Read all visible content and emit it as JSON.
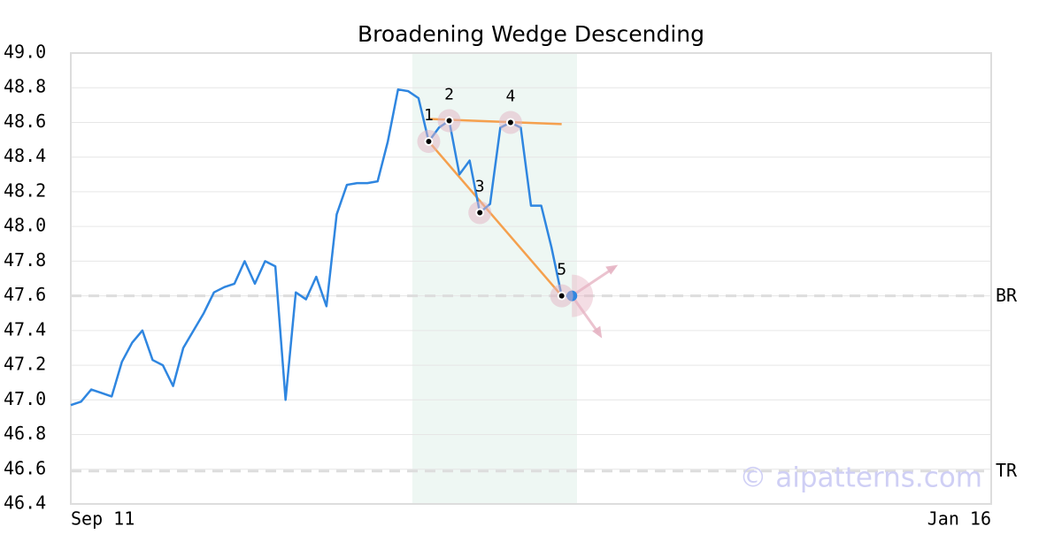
{
  "chart_data": {
    "type": "line",
    "title": "Broadening Wedge Descending",
    "categories": [
      "Sep 11",
      null,
      null,
      null,
      null,
      null,
      null,
      null,
      null,
      null,
      null,
      null,
      null,
      null,
      null,
      null,
      null,
      null,
      null,
      null,
      null,
      null,
      null,
      null,
      null,
      null,
      null,
      null,
      null,
      null,
      null,
      null,
      null,
      null,
      null,
      null,
      null,
      null,
      null,
      null,
      null,
      null,
      null,
      null,
      null,
      null,
      null,
      null,
      null,
      null,
      null,
      null,
      null,
      null,
      null,
      null,
      null,
      null,
      null,
      null,
      null,
      null,
      null,
      null,
      null,
      null,
      null,
      null,
      null,
      null,
      null,
      null,
      null,
      null,
      null,
      null,
      null,
      null,
      null,
      null,
      null,
      null,
      null,
      null,
      null,
      null,
      null,
      null,
      null,
      null,
      "Jan 16"
    ],
    "series": [
      {
        "color": "#2f86e0",
        "values": [
          46.97,
          46.99,
          47.06,
          47.04,
          47.02,
          47.22,
          47.33,
          47.4,
          47.23,
          47.2,
          47.08,
          47.3,
          47.4,
          47.5,
          47.62,
          47.65,
          47.67,
          47.8,
          47.67,
          47.8,
          47.77,
          47.0,
          47.62,
          47.58,
          47.71,
          47.54,
          48.07,
          48.24,
          48.25,
          48.25,
          48.26,
          48.49,
          48.79,
          48.78,
          48.74,
          48.49,
          48.57,
          48.61,
          48.3,
          48.38,
          48.08,
          48.13,
          48.57,
          48.6,
          48.57,
          48.12,
          48.12,
          47.88,
          47.6,
          47.6,
          null,
          null,
          null,
          null,
          null,
          null,
          null,
          null,
          null,
          null,
          null,
          null,
          null,
          null,
          null,
          null,
          null,
          null,
          null,
          null,
          null,
          null,
          null,
          null,
          null,
          null,
          null,
          null,
          null,
          null,
          null,
          null,
          null,
          null,
          null,
          null,
          null,
          null,
          null,
          null,
          null
        ]
      }
    ],
    "ylim": [
      46.4,
      49.0
    ],
    "yticks": [
      46.4,
      46.6,
      46.8,
      {
        "value": 47.0,
        "label": "47.0"
      },
      47.2,
      47.4,
      47.6,
      47.8,
      {
        "value": 48.0,
        "label": "48.0"
      },
      48.2,
      48.4,
      48.6,
      48.8,
      {
        "value": 49.0,
        "label": "49.0"
      }
    ],
    "grid": true,
    "highlight": {
      "color": "#eef7f3",
      "x": [
        33.4,
        49.5
      ]
    },
    "pattern_points": [
      {
        "label": "1",
        "x": 35,
        "y": 48.49
      },
      {
        "label": "2",
        "x": 37,
        "y": 48.61
      },
      {
        "label": "3",
        "x": 40,
        "y": 48.08
      },
      {
        "label": "4",
        "x": 43,
        "y": 48.6
      },
      {
        "label": "5",
        "x": 48,
        "y": 47.6
      }
    ],
    "trendlines": [
      {
        "color": "#f5a04d",
        "x": [
          35,
          48
        ],
        "y": [
          48.62,
          48.59
        ]
      },
      {
        "color": "#f5a04d",
        "x": [
          35,
          48
        ],
        "y": [
          48.49,
          47.6
        ]
      }
    ],
    "reference_lines": [
      {
        "label": "BR",
        "value": 47.6
      },
      {
        "label": "TR",
        "value": 46.59
      }
    ],
    "watermark": "© aipatterns.com"
  }
}
